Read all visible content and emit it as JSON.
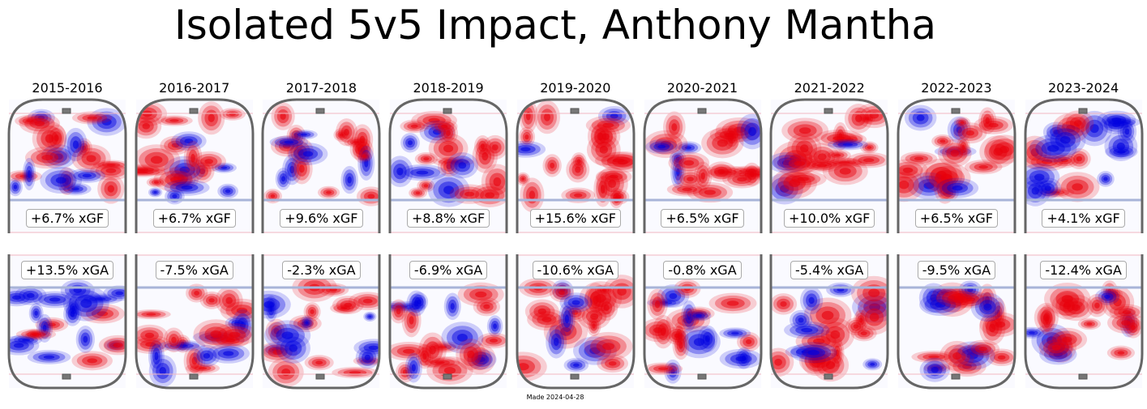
{
  "chart_data": {
    "type": "heatmap",
    "title": "Isolated 5v5 Impact, Anthony Mantha",
    "footer": "Made 2024-04-28",
    "colors": {
      "positive": "#e8000b",
      "negative": "#0000e0",
      "rink_line": "#666666",
      "blue_line": "#a8b4d8",
      "red_line": "#f2b8c0"
    },
    "seasons": [
      {
        "season": "2015-2016",
        "xgf": "+6.7% xGF",
        "xga": "+13.5% xGA",
        "xgf_pct": 6.7,
        "xga_pct": 13.5
      },
      {
        "season": "2016-2017",
        "xgf": "+6.7% xGF",
        "xga": "-7.5% xGA",
        "xgf_pct": 6.7,
        "xga_pct": -7.5
      },
      {
        "season": "2017-2018",
        "xgf": "+9.6% xGF",
        "xga": "-2.3% xGA",
        "xgf_pct": 9.6,
        "xga_pct": -2.3
      },
      {
        "season": "2018-2019",
        "xgf": "+8.8% xGF",
        "xga": "-6.9% xGA",
        "xgf_pct": 8.8,
        "xga_pct": -6.9
      },
      {
        "season": "2019-2020",
        "xgf": "+15.6% xGF",
        "xga": "-10.6% xGA",
        "xgf_pct": 15.6,
        "xga_pct": -10.6
      },
      {
        "season": "2020-2021",
        "xgf": "+6.5% xGF",
        "xga": "-0.8% xGA",
        "xgf_pct": 6.5,
        "xga_pct": -0.8
      },
      {
        "season": "2021-2022",
        "xgf": "+10.0% xGF",
        "xga": "-5.4% xGA",
        "xgf_pct": 10.0,
        "xga_pct": -5.4
      },
      {
        "season": "2022-2023",
        "xgf": "+6.5% xGF",
        "xga": "-9.5% xGA",
        "xgf_pct": 6.5,
        "xga_pct": -9.5
      },
      {
        "season": "2023-2024",
        "xgf": "+4.1% xGF",
        "xga": "-12.4% xGA",
        "xgf_pct": 4.1,
        "xga_pct": -12.4
      }
    ]
  }
}
